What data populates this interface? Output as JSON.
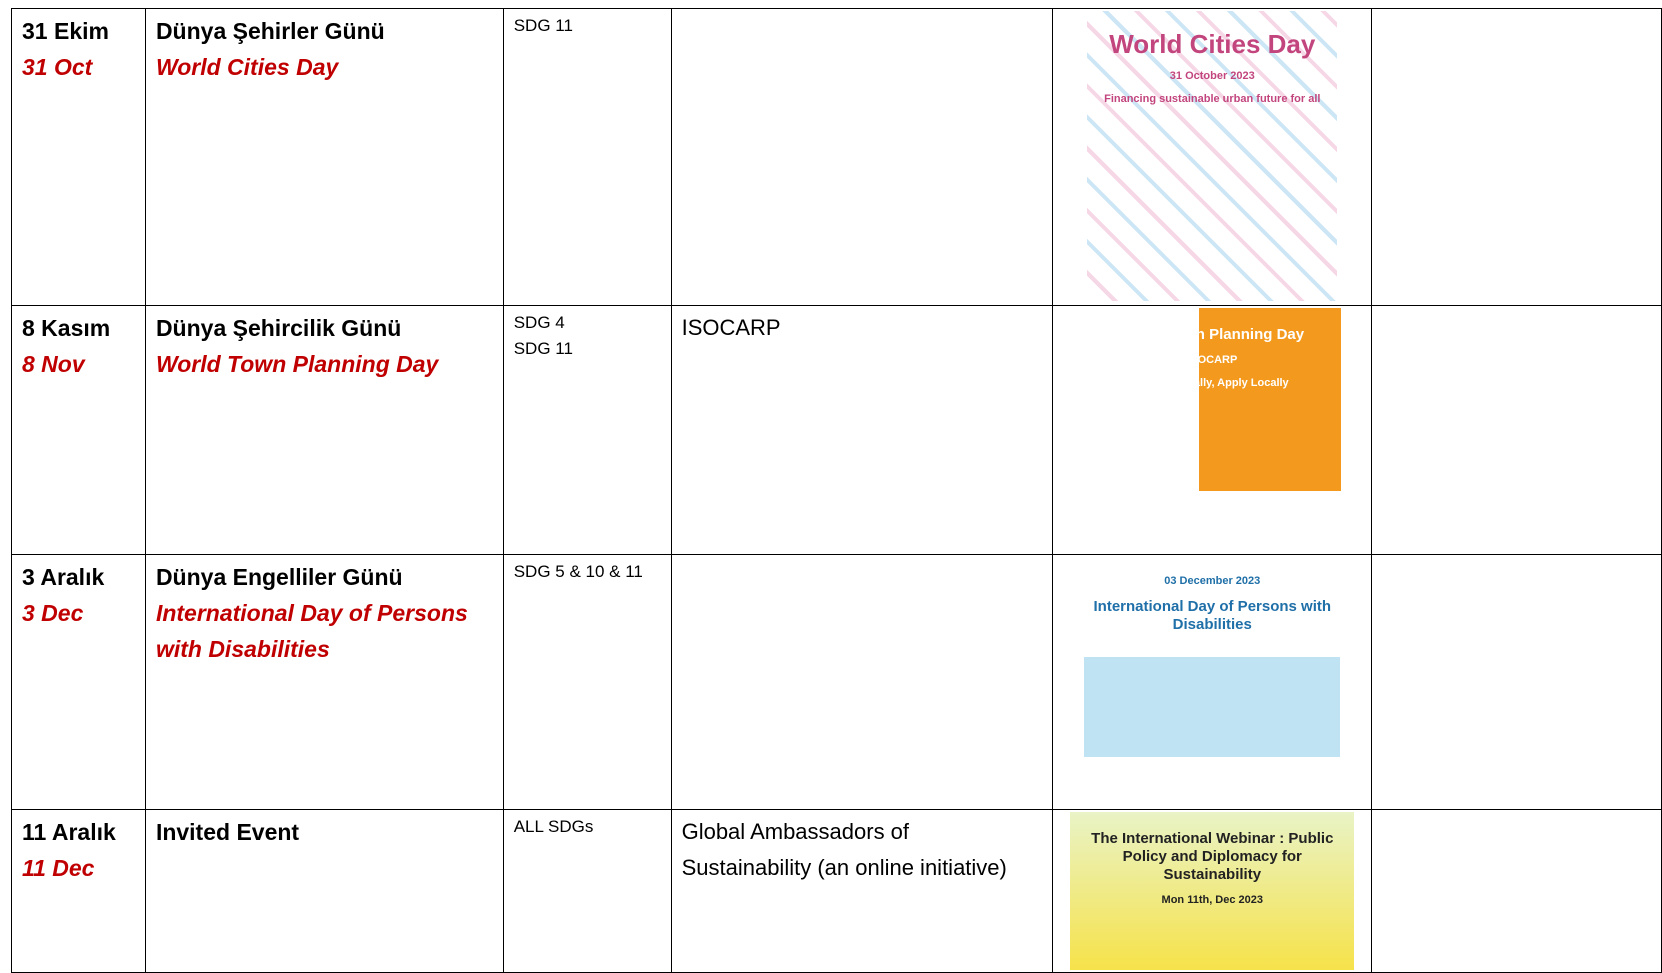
{
  "table": {
    "rows": [
      {
        "date_tr": "31 Ekim",
        "date_en": "31 Oct",
        "name_tr": "Dünya Şehirler Günü",
        "name_en": "World Cities Day",
        "sdg": [
          "SDG 11"
        ],
        "partner": "",
        "poster": {
          "title": "World Cities Day",
          "date": "31 October 2023",
          "theme": "Financing sustainable urban future for all"
        }
      },
      {
        "date_tr": "8 Kasım",
        "date_en": "8 Nov",
        "name_tr": "Dünya Şehircilik Günü",
        "name_en": "World Town Planning Day",
        "sdg": [
          "SDG 4",
          "SDG 11"
        ],
        "partner": "ISOCARP",
        "poster": {
          "title": "World Town Planning Day",
          "org": "ISOCARP",
          "theme": "Learn Globally, Apply Locally"
        }
      },
      {
        "date_tr": "3 Aralık",
        "date_en": "3 Dec",
        "name_tr": "Dünya Engelliler Günü",
        "name_en": "International Day of Persons with Disabilities",
        "sdg": [
          "SDG 5 & 10 & 11"
        ],
        "partner": "",
        "poster": {
          "date": "03 December 2023",
          "title": "International Day of Persons with Disabilities"
        }
      },
      {
        "date_tr": "11 Aralık",
        "date_en": "11 Dec",
        "name_tr": "Invited Event",
        "sdg": [
          "ALL SDGs"
        ],
        "partner": "Global Ambassadors of Sustainability (an online initiative)",
        "poster": {
          "title": "The International Webinar : Public Policy and Diplomacy for Sustainability",
          "date": "Mon 11th, Dec 2023"
        }
      }
    ]
  }
}
